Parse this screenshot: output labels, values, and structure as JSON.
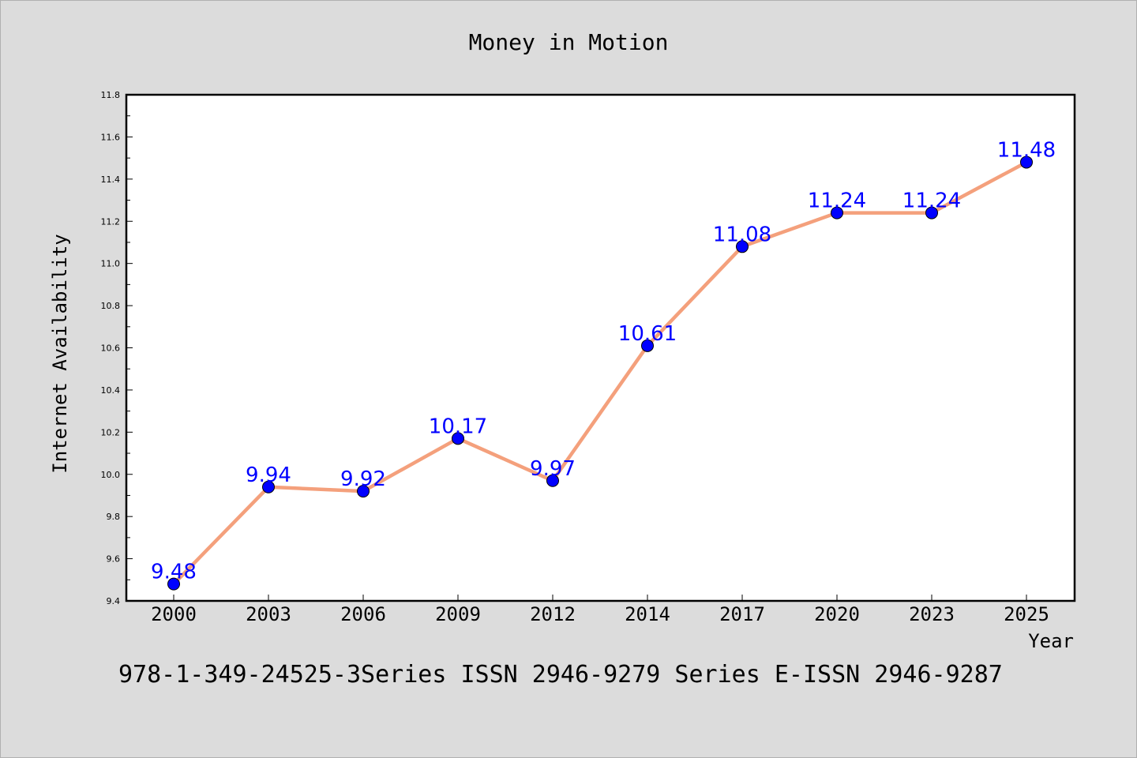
{
  "chart_data": {
    "type": "line",
    "title": "Money in Motion",
    "xlabel": "Year",
    "ylabel": "Internet Availability",
    "categories": [
      "2000",
      "2003",
      "2006",
      "2009",
      "2012",
      "2014",
      "2017",
      "2020",
      "2023",
      "2025"
    ],
    "series": [
      {
        "values": [
          9.48,
          9.94,
          9.92,
          10.17,
          9.97,
          10.61,
          11.08,
          11.24,
          11.24,
          11.48
        ],
        "data_labels": [
          "9.48",
          "9.94",
          "9.92",
          "10.17",
          "9.97",
          "10.61",
          "11.08",
          "11.24",
          "11.24",
          "11.48"
        ],
        "line_color": "#f4a07c",
        "marker_color": "#0000ff"
      }
    ],
    "ylim": [
      9.4,
      11.8
    ],
    "yticks": [
      "9.4",
      "9.6",
      "9.8",
      "10.0",
      "10.2",
      "10.4",
      "10.6",
      "10.8",
      "11.0",
      "11.2",
      "11.4",
      "11.6",
      "11.8"
    ],
    "grid": false,
    "legend": "none"
  },
  "footer": "978-1-349-24525-3Series ISSN 2946-9279 Series E-ISSN 2946-9287",
  "colors": {
    "background": "#dcdcdc",
    "plot_background": "#ffffff",
    "line": "#f4a07c",
    "marker": "#0000ff",
    "data_label": "#0000ff"
  }
}
